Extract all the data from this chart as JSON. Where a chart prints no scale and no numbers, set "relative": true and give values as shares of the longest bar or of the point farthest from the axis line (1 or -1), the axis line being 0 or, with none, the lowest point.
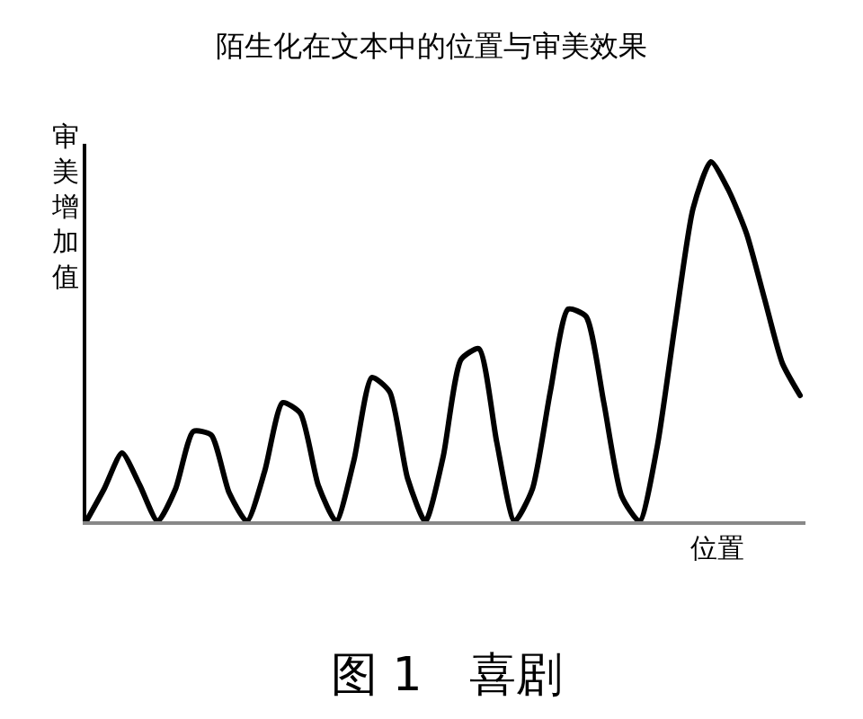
{
  "chart_data": {
    "type": "line",
    "relative": true,
    "title": "陌生化在文本中的位置与审美效果",
    "ylabel": "审美增加值",
    "xlabel": "位置",
    "annotations": [
      "图 1　喜剧"
    ],
    "categories": [
      null,
      null,
      null,
      null,
      null,
      null,
      null,
      null,
      null,
      null,
      null,
      null,
      null,
      null,
      null,
      null,
      null,
      null,
      null,
      null,
      null,
      null,
      null,
      null,
      null,
      null,
      null,
      null,
      null,
      null,
      null,
      null,
      null,
      null,
      null,
      null,
      null,
      null,
      null,
      null,
      null
    ],
    "series": [
      {
        "color": "#000000",
        "values": [
          0,
          0.09,
          0.19,
          0.1,
          0,
          0.09,
          0.25,
          0.24,
          0.08,
          0,
          0.14,
          0.33,
          0.3,
          0.1,
          0,
          0.17,
          0.4,
          0.36,
          0.12,
          0,
          0.18,
          0.45,
          0.48,
          0.22,
          0,
          0.09,
          0.36,
          0.59,
          0.57,
          0.33,
          0.07,
          0,
          0.21,
          0.55,
          0.87,
          1,
          0.92,
          0.8,
          0.62,
          0.44,
          0.35
        ]
      }
    ],
    "line_style": "solid",
    "marker": "none"
  }
}
